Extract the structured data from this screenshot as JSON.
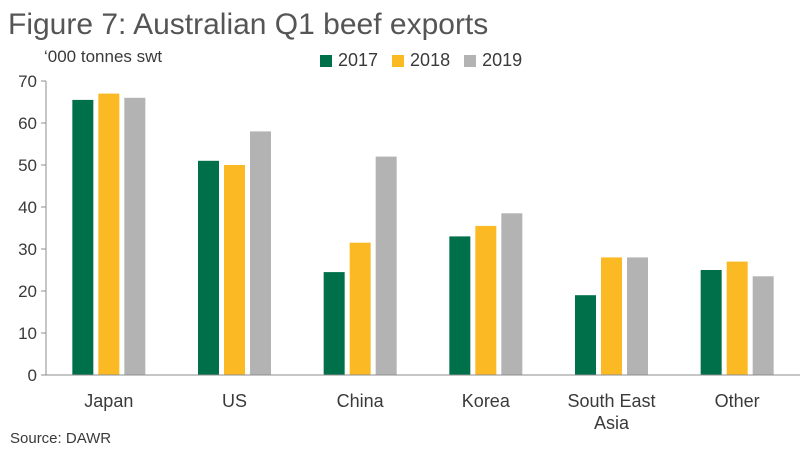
{
  "chart_data": {
    "type": "bar",
    "title": "Figure 7: Australian Q1 beef exports",
    "ylabel": "‘000 tonnes swt",
    "xlabel": "",
    "source": "Source: DAWR",
    "categories": [
      "Japan",
      "US",
      "China",
      "Korea",
      "South East Asia",
      "Other"
    ],
    "category_lines": [
      [
        "Japan"
      ],
      [
        "US"
      ],
      [
        "China"
      ],
      [
        "Korea"
      ],
      [
        "South East",
        "Asia"
      ],
      [
        "Other"
      ]
    ],
    "series": [
      {
        "name": "2017",
        "color": "#00704a",
        "values": [
          65.5,
          51,
          24.5,
          33,
          19,
          25
        ]
      },
      {
        "name": "2018",
        "color": "#fbb924",
        "values": [
          67,
          50,
          31.5,
          35.5,
          28,
          27
        ]
      },
      {
        "name": "2019",
        "color": "#b3b3b3",
        "values": [
          66,
          58,
          52,
          38.5,
          28,
          23.5
        ]
      }
    ],
    "ylim": [
      0,
      70
    ],
    "yticks": [
      0,
      10,
      20,
      30,
      40,
      50,
      60,
      70
    ],
    "legend": "top",
    "grid": false
  }
}
